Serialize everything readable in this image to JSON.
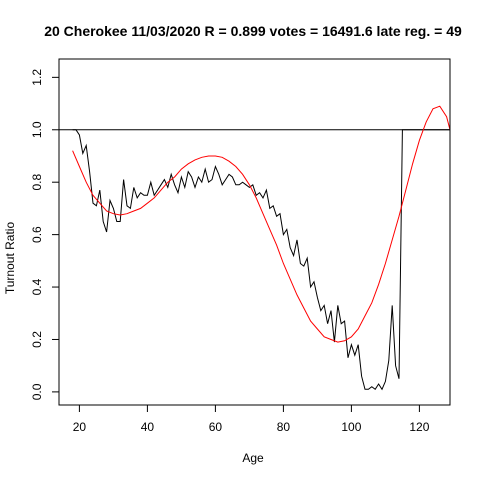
{
  "chart_data": {
    "type": "line",
    "title": "20 Cherokee 11/03/2020 R = 0.899 votes = 16491.6 late reg. = 49",
    "xlabel": "Age",
    "ylabel": "Turnout Ratio",
    "xlim": [
      14,
      129
    ],
    "ylim": [
      -0.05,
      1.27
    ],
    "x_ticks": [
      20,
      40,
      60,
      80,
      100,
      120
    ],
    "x_tick_labels": [
      "20",
      "40",
      "60",
      "80",
      "100",
      "120"
    ],
    "y_ticks": [
      0.0,
      0.2,
      0.4,
      0.6,
      0.8,
      1.0,
      1.2
    ],
    "y_tick_labels": [
      "0.0",
      "0.2",
      "0.4",
      "0.6",
      "0.8",
      "1.0",
      "1.2"
    ],
    "grid": false,
    "legend": "none",
    "reference_line": {
      "y": 1.0,
      "color": "#000000"
    },
    "series": [
      {
        "role": "observed",
        "color": "#000000",
        "x": [
          18,
          19,
          20,
          21,
          22,
          23,
          24,
          25,
          26,
          27,
          28,
          29,
          30,
          31,
          32,
          33,
          34,
          35,
          36,
          37,
          38,
          39,
          40,
          41,
          42,
          43,
          44,
          45,
          46,
          47,
          48,
          49,
          50,
          51,
          52,
          53,
          54,
          55,
          56,
          57,
          58,
          59,
          60,
          61,
          62,
          63,
          64,
          65,
          66,
          67,
          68,
          69,
          70,
          71,
          72,
          73,
          74,
          75,
          76,
          77,
          78,
          79,
          80,
          81,
          82,
          83,
          84,
          85,
          86,
          87,
          88,
          89,
          90,
          91,
          92,
          93,
          94,
          95,
          96,
          97,
          98,
          99,
          100,
          101,
          102,
          103,
          104,
          105,
          106,
          107,
          108,
          109,
          110,
          111,
          112,
          113,
          114,
          115,
          116,
          117,
          118,
          119,
          120,
          121,
          122,
          123,
          124,
          125,
          126,
          127,
          128,
          129
        ],
        "y": [
          1.0,
          1.0,
          0.98,
          0.91,
          0.94,
          0.84,
          0.72,
          0.71,
          0.77,
          0.65,
          0.61,
          0.73,
          0.7,
          0.65,
          0.65,
          0.81,
          0.71,
          0.7,
          0.78,
          0.74,
          0.76,
          0.75,
          0.75,
          0.8,
          0.75,
          0.77,
          0.79,
          0.81,
          0.78,
          0.83,
          0.79,
          0.76,
          0.82,
          0.78,
          0.84,
          0.82,
          0.78,
          0.82,
          0.8,
          0.85,
          0.8,
          0.81,
          0.86,
          0.83,
          0.79,
          0.81,
          0.83,
          0.82,
          0.79,
          0.79,
          0.8,
          0.79,
          0.78,
          0.79,
          0.75,
          0.76,
          0.74,
          0.77,
          0.7,
          0.71,
          0.67,
          0.68,
          0.6,
          0.62,
          0.55,
          0.52,
          0.58,
          0.49,
          0.48,
          0.51,
          0.4,
          0.42,
          0.36,
          0.31,
          0.33,
          0.26,
          0.31,
          0.19,
          0.33,
          0.26,
          0.27,
          0.13,
          0.18,
          0.14,
          0.18,
          0.06,
          0.01,
          0.01,
          0.02,
          0.01,
          0.03,
          0.01,
          0.04,
          0.12,
          0.33,
          0.1,
          0.05,
          1.0,
          1.0,
          1.0,
          1.0,
          1.0,
          1.0,
          1.0,
          1.0,
          1.0,
          1.0,
          1.0,
          1.0,
          1.0,
          1.0,
          1.0
        ]
      },
      {
        "role": "fit",
        "color": "#ff0000",
        "x": [
          18,
          20,
          22,
          24,
          26,
          28,
          30,
          32,
          34,
          36,
          38,
          40,
          42,
          44,
          46,
          48,
          50,
          52,
          54,
          56,
          58,
          60,
          62,
          64,
          66,
          68,
          70,
          72,
          74,
          76,
          78,
          80,
          82,
          84,
          86,
          88,
          90,
          92,
          94,
          96,
          98,
          100,
          102,
          104,
          106,
          108,
          110,
          112,
          114,
          116,
          118,
          120,
          122,
          124,
          126,
          128,
          129
        ],
        "y": [
          0.92,
          0.86,
          0.8,
          0.75,
          0.72,
          0.69,
          0.68,
          0.675,
          0.68,
          0.69,
          0.7,
          0.72,
          0.74,
          0.77,
          0.8,
          0.82,
          0.85,
          0.87,
          0.885,
          0.895,
          0.9,
          0.9,
          0.895,
          0.88,
          0.86,
          0.83,
          0.79,
          0.74,
          0.68,
          0.62,
          0.56,
          0.49,
          0.43,
          0.37,
          0.32,
          0.27,
          0.24,
          0.21,
          0.2,
          0.19,
          0.195,
          0.21,
          0.24,
          0.29,
          0.34,
          0.41,
          0.49,
          0.58,
          0.67,
          0.77,
          0.87,
          0.96,
          1.03,
          1.08,
          1.09,
          1.05,
          1.0
        ]
      }
    ]
  }
}
